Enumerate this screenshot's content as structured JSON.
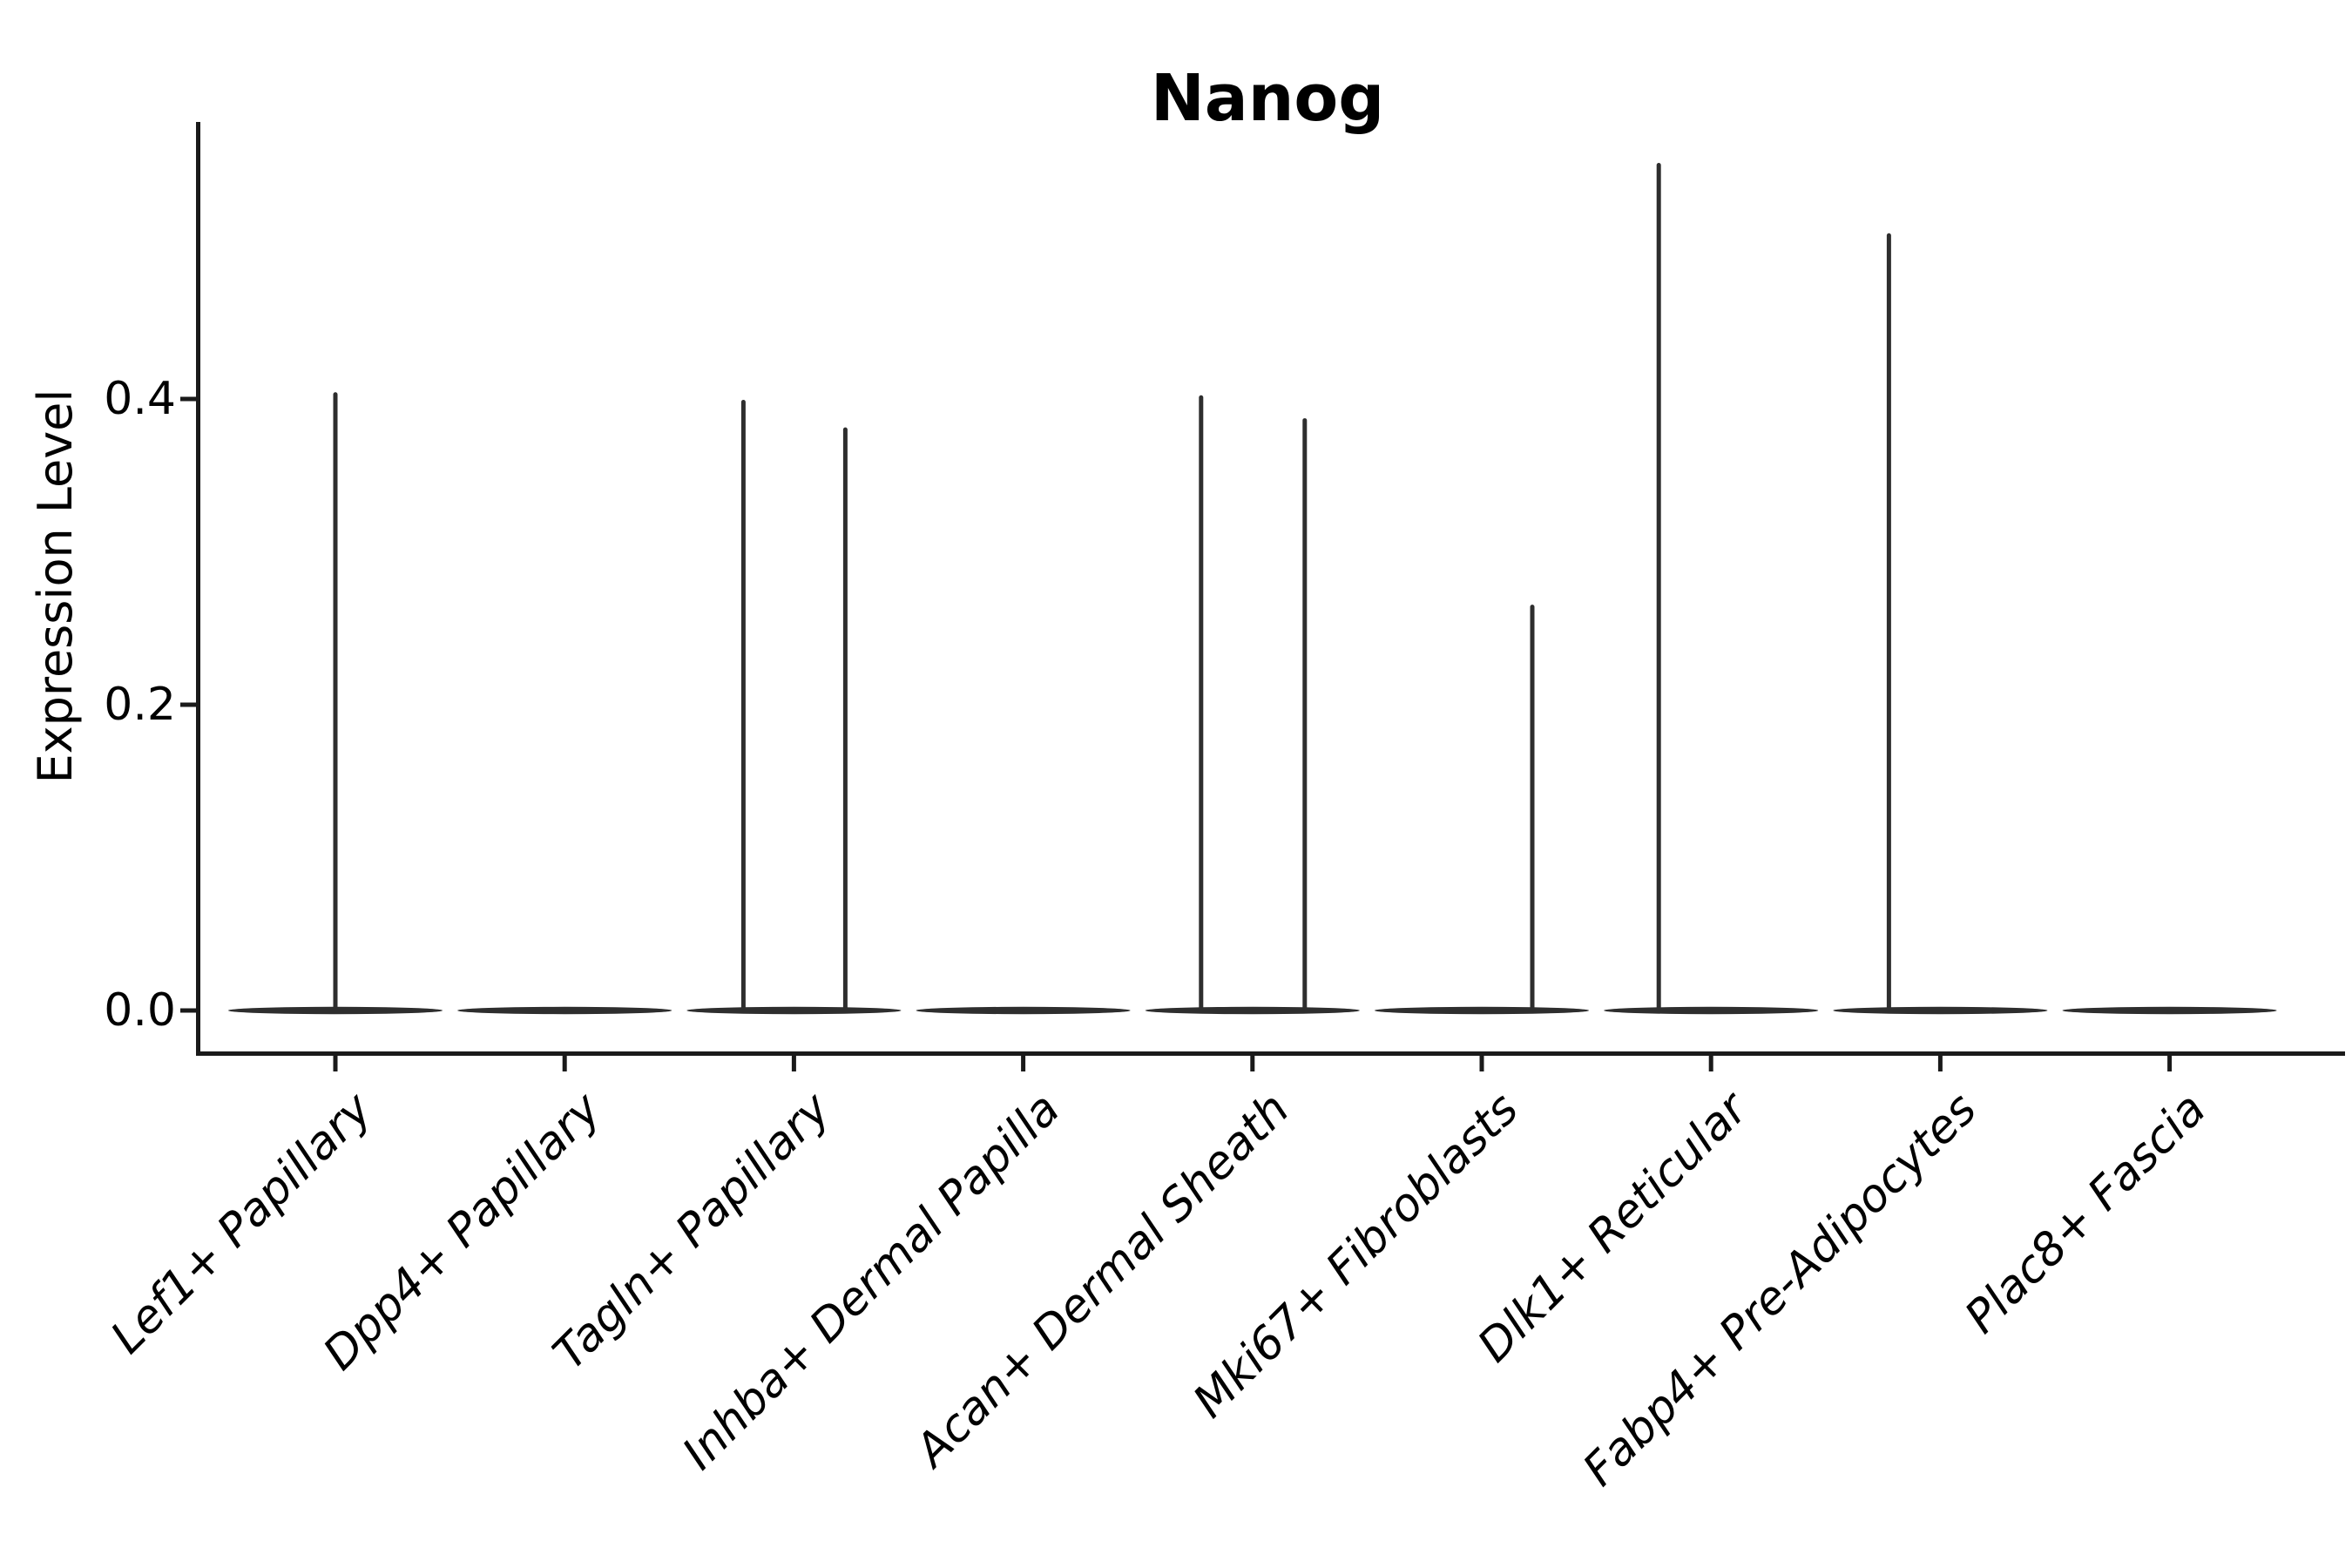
{
  "title": "Nanog",
  "axes": {
    "ylabel": "Expression Level",
    "ytick_labels": [
      "0.0",
      "0.2",
      "0.4"
    ]
  },
  "colors": {
    "axis": "#1a1a1a",
    "violin": "#2e2e2e",
    "text": "#000000"
  },
  "chart_data": {
    "type": "violin",
    "title": "Nanog",
    "xlabel": "",
    "ylabel": "Expression Level",
    "yticks": [
      0.0,
      0.2,
      0.4
    ],
    "ylim": [
      0.0,
      0.58
    ],
    "grid": false,
    "legend": "none",
    "description": "Violin plot of Nanog expression per fibroblast cluster; each cluster shows a wide flat violin at expression 0 with occasional thin spikes reaching the maximum expressed value. dx is the horizontal pixel offset of a spike from its category center (dodged violin position).",
    "categories": [
      "Lef1+ Papillary",
      "Dpp4+ Papillary",
      "Tagln+ Papillary",
      "Inhba+ Dermal Papilla",
      "Acan+ Dermal Sheath",
      "Mki67+ Fibroblasts",
      "Dlk1+ Reticular",
      "Fabp4+ Pre-Adipocytes",
      "Plac8+ Fascia"
    ],
    "series": [
      {
        "category": "Lef1+ Papillary",
        "baseline_value": 0.0,
        "spikes": [
          {
            "value": 0.403,
            "dx": 0
          }
        ]
      },
      {
        "category": "Dpp4+ Papillary",
        "baseline_value": 0.0,
        "spikes": []
      },
      {
        "category": "Tagln+ Papillary",
        "baseline_value": 0.0,
        "spikes": [
          {
            "value": 0.398,
            "dx": -58
          },
          {
            "value": 0.38,
            "dx": 59
          }
        ]
      },
      {
        "category": "Inhba+ Dermal Papilla",
        "baseline_value": 0.0,
        "spikes": []
      },
      {
        "category": "Acan+ Dermal Sheath",
        "baseline_value": 0.0,
        "spikes": [
          {
            "value": 0.401,
            "dx": -59
          },
          {
            "value": 0.386,
            "dx": 60
          }
        ]
      },
      {
        "category": "Mki67+ Fibroblasts",
        "baseline_value": 0.0,
        "spikes": [
          {
            "value": 0.264,
            "dx": 58
          }
        ]
      },
      {
        "category": "Dlk1+ Reticular",
        "baseline_value": 0.0,
        "spikes": [
          {
            "value": 0.553,
            "dx": -60
          }
        ]
      },
      {
        "category": "Fabp4+ Pre-Adipocytes",
        "baseline_value": 0.0,
        "spikes": [
          {
            "value": 0.507,
            "dx": -59
          }
        ]
      },
      {
        "category": "Plac8+ Fascia",
        "baseline_value": 0.0,
        "spikes": []
      }
    ]
  }
}
